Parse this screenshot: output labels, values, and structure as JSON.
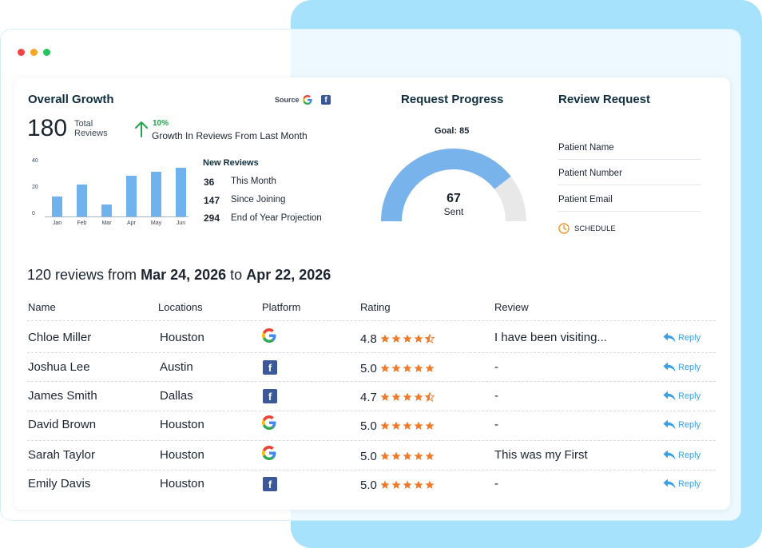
{
  "colors": {
    "accent": "#3aa0e4",
    "bar": "#6fb2ee",
    "star": "#f07a2a",
    "growth": "#22a34a",
    "schedule": "#f0962a",
    "gauge_fill": "#79b3ec",
    "gauge_rest": "#e8e8e8",
    "backdrop": "#a6e2fb"
  },
  "window": {
    "dots": [
      "#ef4444",
      "#f5a623",
      "#22c55e"
    ]
  },
  "growth": {
    "title": "Overall Growth",
    "total_value": "180",
    "total_label_1": "Total",
    "total_label_2": "Reviews",
    "percent": "10%",
    "growth_text": "Growth In Reviews From Last Month",
    "source_label": "Source",
    "source_icons": [
      "google-icon",
      "facebook-icon"
    ]
  },
  "chart_data": {
    "type": "bar",
    "categories": [
      "Jan",
      "Feb",
      "Mar",
      "Apr",
      "May",
      "Jun"
    ],
    "values": [
      15,
      24,
      9,
      31,
      34,
      37
    ],
    "yticks": [
      "40",
      "20",
      "0"
    ],
    "ylim": [
      0,
      40
    ]
  },
  "new_reviews": {
    "title": "New Reviews",
    "items": [
      {
        "value": "36",
        "label": "This Month"
      },
      {
        "value": "147",
        "label": "Since Joining"
      },
      {
        "value": "294",
        "label": "End of Year Projection"
      }
    ]
  },
  "progress": {
    "title": "Request Progress",
    "goal": "Goal: 85",
    "sent_value": "67",
    "sent_label": "Sent",
    "fraction": 0.788
  },
  "request": {
    "title": "Review Request",
    "fields": [
      "Patient Name",
      "Patient Number",
      "Patient Email"
    ],
    "schedule_label": "SCHEDULE"
  },
  "summary": {
    "prefix": "120 reviews from",
    "start": "Mar 24, 2026",
    "mid": "to",
    "end": "Apr 22, 2026"
  },
  "table": {
    "headers": [
      "Name",
      "Locations",
      "Platform",
      "Rating",
      "Review"
    ],
    "reply_label": "Reply",
    "rows": [
      {
        "name": "Chloe Miller",
        "location": "Houston",
        "platform": "google",
        "rating": "4.8",
        "stars": 4.5,
        "review": "I have been visiting..."
      },
      {
        "name": "Joshua Lee",
        "location": "Austin",
        "platform": "facebook",
        "rating": "5.0",
        "stars": 5,
        "review": "-"
      },
      {
        "name": "James Smith",
        "location": "Dallas",
        "platform": "facebook",
        "rating": "4.7",
        "stars": 4.5,
        "review": "-"
      },
      {
        "name": "David Brown",
        "location": "Houston",
        "platform": "google",
        "rating": "5.0",
        "stars": 5,
        "review": "-"
      },
      {
        "name": "Sarah Taylor",
        "location": "Houston",
        "platform": "google",
        "rating": "5.0",
        "stars": 5,
        "review": "This was my First"
      },
      {
        "name": "Emily Davis",
        "location": "Houston",
        "platform": "facebook",
        "rating": "5.0",
        "stars": 5,
        "review": "-"
      }
    ]
  }
}
